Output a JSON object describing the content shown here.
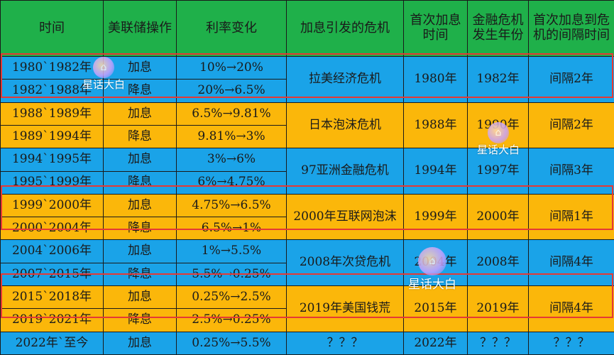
{
  "header": {
    "time": "时间",
    "fed_operation": "美联储操作",
    "rate_change": "利率变化",
    "crisis": "加息引发的危机",
    "first_hike_time": "首次加息时间",
    "crisis_year": "金融危机发生年份",
    "interval": "首次加息到危机的间隔时间"
  },
  "groups": [
    {
      "rows": [
        {
          "time": "1980`1982年",
          "op": "加息",
          "rate": "10%→20%"
        },
        {
          "time": "1982`1988年",
          "op": "降息",
          "rate": "20%→6.5%"
        }
      ],
      "crisis": "拉美经济危机",
      "first_hike": "1980年",
      "crisis_year": "1982年",
      "interval": "间隔2年"
    },
    {
      "rows": [
        {
          "time": "1988`1989年",
          "op": "加息",
          "rate": "6.5%→9.81%"
        },
        {
          "time": "1989`1994年",
          "op": "降息",
          "rate": "9.81%→3%"
        }
      ],
      "crisis": "日本泡沫危机",
      "first_hike": "1988年",
      "crisis_year": "1990年",
      "interval": "间隔2年"
    },
    {
      "rows": [
        {
          "time": "1994`1995年",
          "op": "加息",
          "rate": "3%→6%"
        },
        {
          "time": "1995`1999年",
          "op": "降息",
          "rate": "6%→4.75%"
        }
      ],
      "crisis": "97亚洲金融危机",
      "first_hike": "1994年",
      "crisis_year": "1997年",
      "interval": "间隔3年"
    },
    {
      "rows": [
        {
          "time": "1999`2000年",
          "op": "加息",
          "rate": "4.75%→6.5%"
        },
        {
          "time": "2000`2004年",
          "op": "降息",
          "rate": "6.5%→1%"
        }
      ],
      "crisis": "2000年互联网泡沫",
      "first_hike": "1999年",
      "crisis_year": "2000年",
      "interval": "间隔1年"
    },
    {
      "rows": [
        {
          "time": "2004`2006年",
          "op": "加息",
          "rate": "1%→5.5%"
        },
        {
          "time": "2007`2015年",
          "op": "降息",
          "rate": "5.5%→0.25%"
        }
      ],
      "crisis": "2008年次贷危机",
      "first_hike": "2004年",
      "crisis_year": "2008年",
      "interval": "间隔4年"
    },
    {
      "rows": [
        {
          "time": "2015`2018年",
          "op": "加息",
          "rate": "0.25%→2.5%"
        },
        {
          "time": "2019`2021年",
          "op": "降息",
          "rate": "2.5%→0.25%"
        }
      ],
      "crisis": "2019年美国钱荒",
      "first_hike": "2015年",
      "crisis_year": "2019年",
      "interval": "间隔4年"
    }
  ],
  "last_row": {
    "time": "2022年`至今",
    "op": "加息",
    "rate": "0.25%→5.5%",
    "crisis": "？？？",
    "first_hike": "2022年",
    "crisis_year": "？？？",
    "interval": "？？？"
  },
  "watermark": {
    "text": "星话大白"
  },
  "colors": {
    "header": "#1fb04a",
    "blue": "#1aa3e8",
    "orange": "#fbb70a",
    "highlight_border": "#e53935"
  }
}
